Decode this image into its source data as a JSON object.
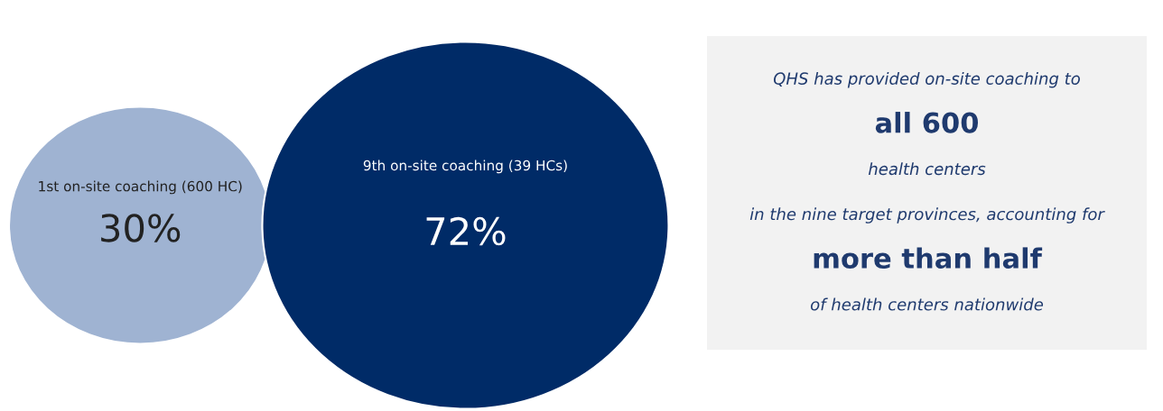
{
  "chart_data": [
    {
      "type": "other",
      "categories": [
        "1st on-site coaching (600 HC)",
        "9th on-site coaching (39 HCs)"
      ],
      "values": [
        30,
        72
      ],
      "value_labels": [
        "30%",
        "72%"
      ],
      "colors": [
        "#9fb3d2",
        "#002b67"
      ]
    },
    {
      "type": "other",
      "annotations": [
        "QHS has provided on-site coaching to",
        "all 600",
        "health centers",
        "in the nine target provinces, accounting for",
        "more than half",
        "of health centers nationwide"
      ]
    }
  ]
}
